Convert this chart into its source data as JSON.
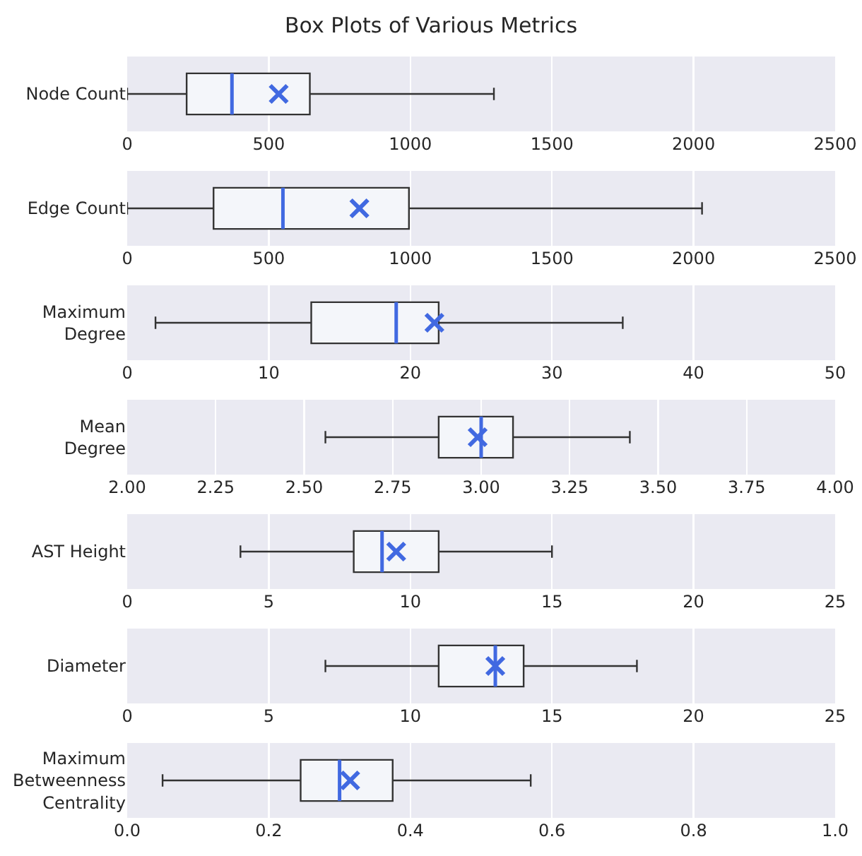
{
  "chart_data": [
    {
      "type": "box",
      "title": "Box Plots of Various Metrics",
      "orientation": "horizontal",
      "grid": "x",
      "marker": "cross",
      "categories": [
        "Node Count"
      ],
      "boxes": [
        {
          "low": 0,
          "q1": 210,
          "median": 370,
          "q3": 645,
          "high": 1295,
          "mean": 535
        }
      ],
      "xlim": [
        0,
        2500
      ],
      "xticks": [
        0,
        500,
        1000,
        1500,
        2000,
        2500
      ]
    },
    {
      "type": "box",
      "orientation": "horizontal",
      "grid": "x",
      "marker": "cross",
      "categories": [
        "Edge Count"
      ],
      "boxes": [
        {
          "low": 0,
          "q1": 305,
          "median": 550,
          "q3": 995,
          "high": 2030,
          "mean": 820
        }
      ],
      "xlim": [
        0,
        2500
      ],
      "xticks": [
        0,
        500,
        1000,
        1500,
        2000,
        2500
      ]
    },
    {
      "type": "box",
      "orientation": "horizontal",
      "grid": "x",
      "marker": "cross",
      "categories": [
        "Maximum Degree"
      ],
      "boxes": [
        {
          "low": 2,
          "q1": 13,
          "median": 19,
          "q3": 22,
          "high": 35,
          "mean": 21.7
        }
      ],
      "xlim": [
        0,
        50
      ],
      "xticks": [
        0,
        10,
        20,
        30,
        40,
        50
      ]
    },
    {
      "type": "box",
      "orientation": "horizontal",
      "grid": "x",
      "marker": "cross",
      "categories": [
        "Mean Degree"
      ],
      "boxes": [
        {
          "low": 2.56,
          "q1": 2.88,
          "median": 3.0,
          "q3": 3.09,
          "high": 3.42,
          "mean": 2.99
        }
      ],
      "xlim": [
        2,
        4
      ],
      "xticks": [
        {
          "value": 2,
          "label": "2.00"
        },
        2.25,
        {
          "value": 2.5,
          "label": "2.50"
        },
        2.75,
        {
          "value": 3,
          "label": "3.00"
        },
        3.25,
        {
          "value": 3.5,
          "label": "3.50"
        },
        3.75,
        {
          "value": 4,
          "label": "4.00"
        }
      ]
    },
    {
      "type": "box",
      "orientation": "horizontal",
      "grid": "x",
      "marker": "cross",
      "categories": [
        "AST Height"
      ],
      "boxes": [
        {
          "low": 4,
          "q1": 8,
          "median": 9,
          "q3": 11,
          "high": 15,
          "mean": 9.5
        }
      ],
      "xlim": [
        0,
        25
      ],
      "xticks": [
        0,
        5,
        10,
        15,
        20,
        25
      ]
    },
    {
      "type": "box",
      "orientation": "horizontal",
      "grid": "x",
      "marker": "cross",
      "categories": [
        "Diameter"
      ],
      "boxes": [
        {
          "low": 7,
          "q1": 11,
          "median": 13,
          "q3": 14,
          "high": 18,
          "mean": 13
        }
      ],
      "xlim": [
        0,
        25
      ],
      "xticks": [
        0,
        5,
        10,
        15,
        20,
        25
      ]
    },
    {
      "type": "box",
      "orientation": "horizontal",
      "grid": "x",
      "marker": "cross",
      "categories": [
        "Maximum Betweenness Centrality"
      ],
      "boxes": [
        {
          "low": 0.05,
          "q1": 0.245,
          "median": 0.3,
          "q3": 0.375,
          "high": 0.57,
          "mean": 0.315
        }
      ],
      "xlim": [
        0,
        1
      ],
      "xticks": [
        {
          "value": 0,
          "label": "0.0"
        },
        0.2,
        0.4,
        0.6,
        0.8,
        {
          "value": 1,
          "label": "1.0"
        }
      ]
    }
  ]
}
